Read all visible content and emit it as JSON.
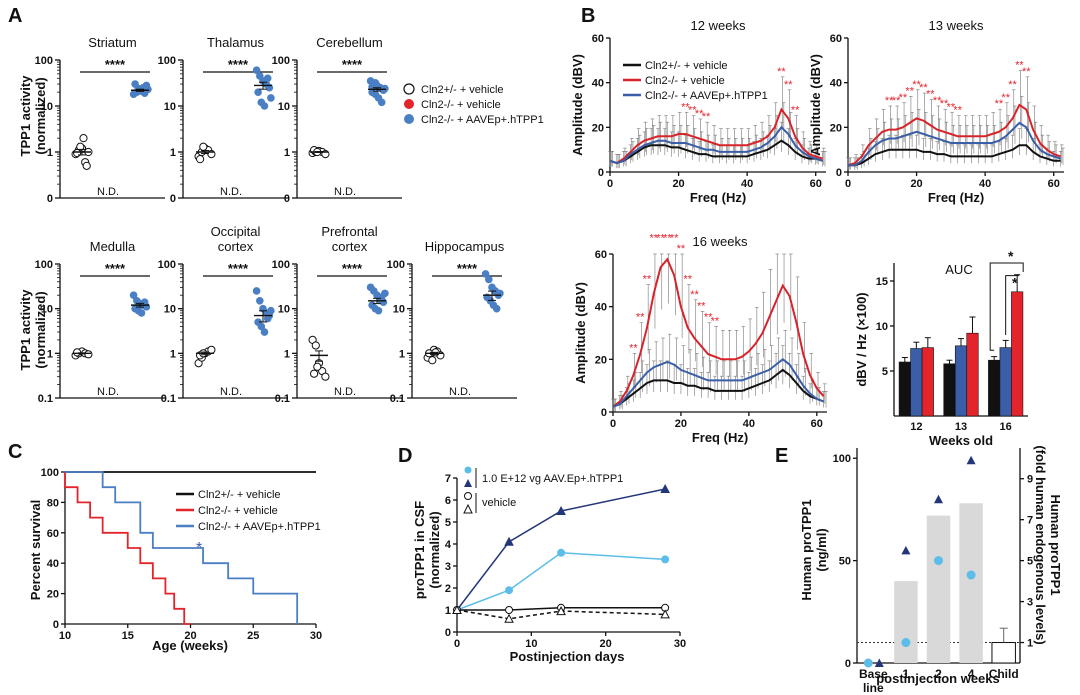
{
  "panel_labels": {
    "a": "A",
    "b": "B",
    "c": "C",
    "d": "D",
    "e": "E"
  },
  "panelA": {
    "ylabel": "TPP1 activity (normalized)",
    "ylabel_l1": "TPP1 activity",
    "ylabel_l2": "(normalized)",
    "sig": "****",
    "nd": "N.D.",
    "legend": [
      "Cln2+/- + vehicle",
      "Cln2-/- + vehicle",
      "Cln2-/- + AAVEp+.hTPP1"
    ],
    "row1_ticks": [
      "100",
      "10",
      "1",
      "0"
    ],
    "row2_ticks": [
      "100",
      "10",
      "1",
      "0.1"
    ]
  },
  "panelB": {
    "ylabel": "Amplitude (dBV)",
    "xlabel": "Freq (Hz)",
    "legend": [
      "Cln2+/- + vehicle",
      "Cln2-/- + vehicle",
      "Cln2-/- + AAVEp+.hTPP1"
    ],
    "colors": {
      "het": "#111111",
      "ko": "#d7242a",
      "aav": "#3a5ea8"
    },
    "sig_marks": "**",
    "auc_sig": "*",
    "auc_title": "AUC",
    "auc_ylabel": "dBV / Hz (×100)",
    "auc_xlabel": "Weeks old",
    "ticks_y": [
      "0",
      "20",
      "40",
      "60"
    ],
    "ticks_x": [
      "0",
      "20",
      "40",
      "60"
    ],
    "auc_ticks": [
      "5",
      "10",
      "15"
    ]
  },
  "panelC": {
    "ylabel": "Percent survival",
    "xlabel": "Age (weeks)",
    "legend": [
      "Cln2+/- + vehicle",
      "Cln2-/- + vehicle",
      "Cln2-/- + AAVEp+.hTPP1"
    ],
    "sig": "*",
    "ticks_y": [
      "0",
      "20",
      "40",
      "60",
      "80",
      "100"
    ],
    "ticks_x": [
      "10",
      "15",
      "20",
      "25",
      "30"
    ]
  },
  "panelD": {
    "ylabel_l1": "proTPP1 in CSF",
    "ylabel_l2": "(normalized)",
    "xlabel": "Postinjection days",
    "legend_treat": "1.0 E+12 vg AAV.Ep+.hTPP1",
    "legend_vehicle": "vehicle",
    "ticks_y": [
      "0",
      "1",
      "2",
      "3",
      "4",
      "5",
      "6",
      "7"
    ],
    "ticks_x": [
      "0",
      "10",
      "20",
      "30"
    ]
  },
  "panelE": {
    "ylabel_left_l1": "Human proTPP1",
    "ylabel_left_l2": "(ng/ml)",
    "ylabel_right_l1": "Human proTPP1",
    "ylabel_right_l2": "(fold human endogenous levels)",
    "xlabel": "postinjection weeks",
    "cats_l1": [
      "Base",
      "1",
      "2",
      "4",
      "Child"
    ],
    "cat_base_l2": "line",
    "ticks_left": [
      "0",
      "50",
      "100"
    ],
    "ticks_right": [
      "1",
      "3",
      "5",
      "7",
      "9"
    ]
  },
  "chart_data": [
    {
      "id": "A-striatum",
      "type": "scatter",
      "title": "Striatum",
      "yscale": "log",
      "ylim": [
        0.1,
        100
      ],
      "groups": [
        {
          "name": "Cln2+/- + vehicle",
          "values": [
            0.9,
            1.1,
            1.2,
            0.6,
            1.0,
            0.95,
            1.3,
            2.0,
            0.5
          ],
          "mean": 1.0
        },
        {
          "name": "Cln2-/- + vehicle",
          "values": [],
          "note": "N.D."
        },
        {
          "name": "Cln2-/- + AAVEp+.hTPP1",
          "values": [
            18,
            20,
            22,
            25,
            28,
            30,
            24,
            21,
            19,
            23
          ],
          "mean": 22
        }
      ]
    },
    {
      "id": "A-thalamus",
      "type": "scatter",
      "title": "Thalamus",
      "yscale": "log",
      "ylim": [
        0.1,
        100
      ],
      "groups": [
        {
          "name": "Cln2+/- + vehicle",
          "values": [
            0.8,
            1.0,
            1.2,
            1.1,
            0.9,
            0.7,
            1.3
          ],
          "mean": 1.0
        },
        {
          "name": "Cln2-/- + vehicle",
          "values": [],
          "note": "N.D."
        },
        {
          "name": "Cln2-/- + AAVEp+.hTPP1",
          "values": [
            60,
            45,
            35,
            30,
            25,
            20,
            12,
            10,
            40,
            15
          ],
          "mean": 28
        }
      ]
    },
    {
      "id": "A-cerebellum",
      "type": "scatter",
      "title": "Cerebellum",
      "yscale": "log",
      "ylim": [
        0.1,
        100
      ],
      "groups": [
        {
          "name": "Cln2+/- + vehicle",
          "values": [
            0.95,
            1.0,
            1.05,
            1.0,
            0.9,
            1.1,
            1.0
          ],
          "mean": 1.0
        },
        {
          "name": "Cln2-/- + vehicle",
          "values": [],
          "note": "N.D."
        },
        {
          "name": "Cln2-/- + AAVEp+.hTPP1",
          "values": [
            35,
            30,
            28,
            25,
            22,
            20,
            18,
            15,
            12,
            24,
            26,
            32
          ],
          "mean": 23
        }
      ]
    },
    {
      "id": "A-medulla",
      "type": "scatter",
      "title": "Medulla",
      "yscale": "log",
      "ylim": [
        0.1,
        100
      ],
      "groups": [
        {
          "name": "Cln2+/- + vehicle",
          "values": [
            0.9,
            1.0,
            1.1,
            1.0,
            0.95,
            1.05
          ],
          "mean": 1.0
        },
        {
          "name": "Cln2-/- + vehicle",
          "values": [],
          "note": "N.D."
        },
        {
          "name": "Cln2-/- + AAVEp+.hTPP1",
          "values": [
            20,
            15,
            13,
            12,
            11,
            10,
            9,
            8,
            14
          ],
          "mean": 12
        }
      ]
    },
    {
      "id": "A-occipital",
      "type": "scatter",
      "title": "Occipital cortex",
      "yscale": "log",
      "ylim": [
        0.1,
        100
      ],
      "groups": [
        {
          "name": "Cln2+/- + vehicle",
          "values": [
            0.6,
            0.8,
            1.0,
            1.1,
            1.2,
            0.9,
            1.0
          ],
          "mean": 1.0
        },
        {
          "name": "Cln2-/- + vehicle",
          "values": [],
          "note": "N.D."
        },
        {
          "name": "Cln2-/- + AAVEp+.hTPP1",
          "values": [
            25,
            15,
            10,
            8,
            7,
            5,
            4,
            3,
            6,
            9
          ],
          "mean": 7
        }
      ]
    },
    {
      "id": "A-prefrontal",
      "type": "scatter",
      "title": "Prefrontal cortex",
      "yscale": "log",
      "ylim": [
        0.1,
        100
      ],
      "groups": [
        {
          "name": "Cln2+/- + vehicle",
          "values": [
            2.0,
            1.5,
            0.6,
            0.4,
            0.3,
            0.35,
            0.5
          ],
          "mean": 0.9
        },
        {
          "name": "Cln2-/- + vehicle",
          "values": [],
          "note": "N.D."
        },
        {
          "name": "Cln2-/- + AAVEp+.hTPP1",
          "values": [
            30,
            25,
            20,
            16,
            14,
            12,
            10,
            9,
            18,
            22
          ],
          "mean": 15
        }
      ]
    },
    {
      "id": "A-hippocampus",
      "type": "scatter",
      "title": "Hippocampus",
      "yscale": "log",
      "ylim": [
        0.1,
        100
      ],
      "groups": [
        {
          "name": "Cln2+/- + vehicle",
          "values": [
            0.8,
            1.0,
            1.2,
            1.1,
            0.9,
            1.0,
            0.7,
            1.05
          ],
          "mean": 1.0
        },
        {
          "name": "Cln2-/- + vehicle",
          "values": [],
          "note": "N.D."
        },
        {
          "name": "Cln2-/- + AAVEp+.hTPP1",
          "values": [
            60,
            45,
            30,
            25,
            20,
            18,
            15,
            12,
            10,
            22
          ],
          "mean": 20
        }
      ]
    },
    {
      "id": "B-12wk",
      "type": "line",
      "title": "12 weeks",
      "xlim": [
        0,
        63
      ],
      "ylim": [
        0,
        60
      ],
      "x": [
        0,
        2,
        4,
        6,
        8,
        10,
        12,
        14,
        16,
        18,
        20,
        22,
        24,
        26,
        28,
        30,
        32,
        34,
        36,
        38,
        40,
        42,
        44,
        46,
        48,
        50,
        52,
        54,
        56,
        58,
        60,
        62
      ],
      "series": [
        {
          "name": "Cln2+/- + vehicle",
          "values": [
            5,
            4,
            5,
            7,
            9,
            11,
            12,
            12,
            12,
            11,
            11,
            10,
            9,
            8,
            8,
            7,
            7,
            7,
            7,
            7,
            7,
            8,
            9,
            10,
            12,
            14,
            12,
            9,
            7,
            6,
            6,
            5
          ]
        },
        {
          "name": "Cln2-/- + vehicle",
          "values": [
            5,
            4,
            6,
            9,
            12,
            14,
            15,
            16,
            16,
            16,
            17,
            17,
            16,
            15,
            14,
            13,
            12,
            12,
            12,
            12,
            12,
            13,
            14,
            16,
            20,
            28,
            24,
            16,
            11,
            8,
            7,
            6
          ]
        },
        {
          "name": "Cln2-/- + AAVEp+.hTPP1",
          "values": [
            5,
            4,
            5,
            8,
            10,
            12,
            13,
            14,
            14,
            13,
            13,
            13,
            12,
            11,
            10,
            10,
            9,
            9,
            9,
            9,
            9,
            10,
            11,
            13,
            16,
            20,
            17,
            12,
            9,
            7,
            6,
            5
          ]
        }
      ]
    },
    {
      "id": "B-13wk",
      "type": "line",
      "title": "13 weeks",
      "xlim": [
        0,
        63
      ],
      "ylim": [
        0,
        60
      ],
      "x": [
        0,
        2,
        4,
        6,
        8,
        10,
        12,
        14,
        16,
        18,
        20,
        22,
        24,
        26,
        28,
        30,
        32,
        34,
        36,
        38,
        40,
        42,
        44,
        46,
        48,
        50,
        52,
        54,
        56,
        58,
        60,
        62
      ],
      "series": [
        {
          "name": "Cln2+/- + vehicle",
          "values": [
            3,
            3,
            4,
            6,
            8,
            9,
            10,
            10,
            10,
            10,
            10,
            9,
            9,
            8,
            8,
            7,
            7,
            7,
            7,
            7,
            7,
            7,
            8,
            9,
            10,
            12,
            12,
            9,
            7,
            6,
            5,
            5
          ]
        },
        {
          "name": "Cln2-/- + vehicle",
          "values": [
            3,
            4,
            7,
            12,
            15,
            18,
            19,
            19,
            20,
            22,
            24,
            23,
            21,
            19,
            18,
            17,
            16,
            16,
            16,
            16,
            16,
            17,
            18,
            20,
            24,
            30,
            28,
            19,
            13,
            10,
            8,
            7
          ]
        },
        {
          "name": "Cln2-/- + AAVEp+.hTPP1",
          "values": [
            3,
            3,
            5,
            9,
            12,
            14,
            15,
            15,
            16,
            17,
            18,
            17,
            16,
            15,
            14,
            13,
            13,
            13,
            13,
            13,
            13,
            13,
            14,
            16,
            19,
            22,
            20,
            14,
            10,
            8,
            7,
            6
          ]
        }
      ]
    },
    {
      "id": "B-16wk",
      "type": "line",
      "title": "16 weeks",
      "xlim": [
        0,
        63
      ],
      "ylim": [
        0,
        60
      ],
      "x": [
        0,
        2,
        4,
        6,
        8,
        10,
        12,
        14,
        16,
        18,
        20,
        22,
        24,
        26,
        28,
        30,
        32,
        34,
        36,
        38,
        40,
        42,
        44,
        46,
        48,
        50,
        52,
        54,
        56,
        58,
        60,
        62
      ],
      "series": [
        {
          "name": "Cln2+/- + vehicle",
          "values": [
            2,
            3,
            5,
            7,
            9,
            11,
            12,
            12,
            12,
            11,
            11,
            10,
            10,
            9,
            9,
            8,
            8,
            8,
            8,
            8,
            9,
            10,
            11,
            12,
            14,
            16,
            14,
            11,
            8,
            6,
            5,
            4
          ]
        },
        {
          "name": "Cln2-/- + vehicle",
          "values": [
            2,
            4,
            8,
            14,
            22,
            32,
            45,
            55,
            58,
            52,
            40,
            32,
            28,
            25,
            22,
            21,
            20,
            20,
            20,
            21,
            23,
            26,
            30,
            36,
            42,
            48,
            44,
            34,
            22,
            14,
            9,
            6
          ]
        },
        {
          "name": "Cln2-/- + AAVEp+.hTPP1",
          "values": [
            2,
            3,
            6,
            9,
            12,
            15,
            17,
            18,
            19,
            18,
            16,
            15,
            14,
            13,
            12,
            12,
            12,
            12,
            12,
            12,
            13,
            14,
            15,
            16,
            18,
            20,
            18,
            14,
            10,
            7,
            5,
            4
          ]
        }
      ]
    },
    {
      "id": "B-AUC",
      "type": "bar",
      "title": "AUC",
      "categories": [
        "12",
        "13",
        "16"
      ],
      "ylim": [
        0,
        17
      ],
      "series": [
        {
          "name": "Cln2+/- + vehicle",
          "values": [
            6.0,
            5.8,
            6.2
          ],
          "err": [
            0.5,
            0.4,
            0.4
          ]
        },
        {
          "name": "Cln2-/- + AAVEp+.hTPP1",
          "values": [
            7.5,
            7.8,
            7.6
          ],
          "err": [
            0.7,
            0.8,
            0.8
          ]
        },
        {
          "name": "Cln2-/- + vehicle",
          "values": [
            7.6,
            9.2,
            13.8
          ],
          "err": [
            1.1,
            1.8,
            1.9
          ]
        }
      ]
    },
    {
      "id": "C",
      "type": "line",
      "subtype": "survival",
      "xlim": [
        10,
        30
      ],
      "ylim": [
        0,
        100
      ],
      "series": [
        {
          "name": "Cln2+/- + vehicle",
          "x": [
            10,
            30
          ],
          "y": [
            100,
            100
          ]
        },
        {
          "name": "Cln2-/- + vehicle",
          "x": [
            10,
            11,
            12,
            13,
            15,
            16,
            17,
            18,
            18.7,
            19.5,
            20
          ],
          "y": [
            90,
            80,
            70,
            60,
            50,
            40,
            30,
            20,
            10,
            0,
            0
          ]
        },
        {
          "name": "Cln2-/- + AAVEp+.hTPP1",
          "x": [
            13,
            14,
            16,
            17,
            21,
            23,
            25,
            28.5
          ],
          "y": [
            90,
            80,
            60,
            50,
            40,
            30,
            20,
            0
          ]
        }
      ]
    },
    {
      "id": "D",
      "type": "line",
      "xlim": [
        0,
        30
      ],
      "ylim": [
        0,
        7
      ],
      "series": [
        {
          "name": "1.0 E+12 vg AAV.Ep+.hTPP1 (subject 1)",
          "x": [
            0,
            7,
            14,
            28
          ],
          "y": [
            1.0,
            1.9,
            3.6,
            3.3
          ]
        },
        {
          "name": "1.0 E+12 vg AAV.Ep+.hTPP1 (subject 2)",
          "x": [
            0,
            7,
            14,
            28
          ],
          "y": [
            1.0,
            4.1,
            5.5,
            6.5
          ]
        },
        {
          "name": "vehicle (subject 1)",
          "x": [
            0,
            7,
            14,
            28
          ],
          "y": [
            1.0,
            1.0,
            1.1,
            1.1
          ]
        },
        {
          "name": "vehicle (subject 2)",
          "x": [
            0,
            7,
            14,
            28
          ],
          "y": [
            1.0,
            0.6,
            0.95,
            0.8
          ]
        }
      ]
    },
    {
      "id": "E",
      "type": "bar",
      "categories": [
        "Baseline",
        "1",
        "2",
        "4",
        "Child"
      ],
      "ylim": [
        0,
        105
      ],
      "bar_values": [
        0,
        40,
        72,
        78,
        10
      ],
      "child_err": 7,
      "points_circle": [
        0,
        10,
        50,
        43,
        null
      ],
      "points_triangle": [
        0,
        55,
        80,
        99,
        null
      ],
      "reference_line": 10
    }
  ]
}
